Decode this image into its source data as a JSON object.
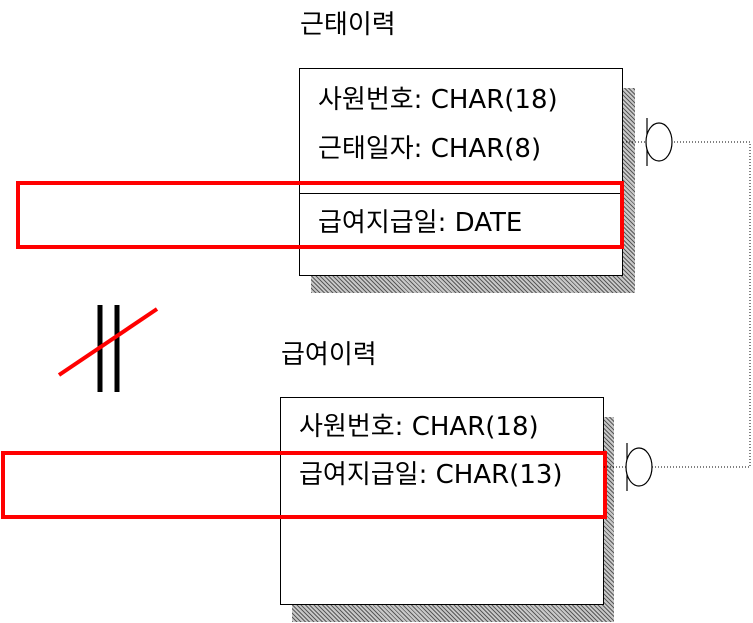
{
  "entities": {
    "attendance": {
      "name": "근태이력",
      "attributes": [
        "사원번호: CHAR(18)",
        "근태일자: CHAR(8)"
      ],
      "non_key_attributes": [
        "급여지급일: DATE"
      ]
    },
    "payroll": {
      "name": "급여이력",
      "attributes": [
        "사원번호: CHAR(18)",
        "급여지급일: CHAR(13)"
      ]
    }
  },
  "colors": {
    "highlight": "#ff0000",
    "line": "#000000",
    "shadow": "#8a8a8a"
  },
  "symbols": {
    "mismatch": "not-equal-icon"
  }
}
